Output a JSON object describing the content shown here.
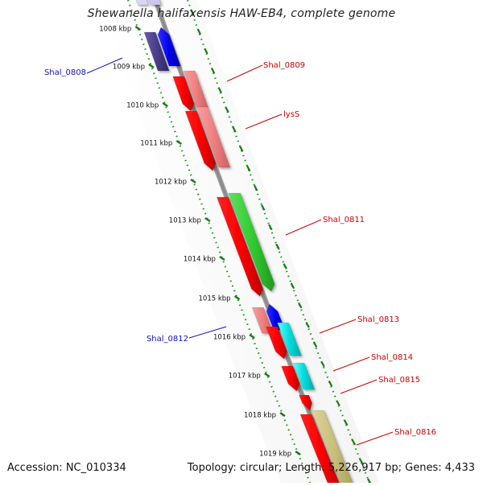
{
  "title": "Shewanella halifaxensis HAW-EB4, complete genome",
  "footer": {
    "accession": "Accession: NC_010334",
    "topology": "Topology: circular; Length: 5,226,917 bp; Genes: 4,433"
  },
  "colors": {
    "backbone": "#8c8c8c",
    "tick_dots": "#22a022",
    "tick_major": "#1a7a1a",
    "label_red": "#cc0000",
    "label_blue": "#1010c0",
    "scale_text": "#111111"
  },
  "scale_ticks": [
    "1008 kbp",
    "1009 kbp",
    "1010 kbp",
    "1011 kbp",
    "1012 kbp",
    "1013 kbp",
    "1014 kbp",
    "1015 kbp",
    "1016 kbp",
    "1017 kbp",
    "1018 kbp",
    "1019 kbp"
  ],
  "gene_labels": [
    {
      "text": "Shal_0808",
      "color": "blue"
    },
    {
      "text": "Shal_0809",
      "color": "red"
    },
    {
      "text": "lysS",
      "color": "red"
    },
    {
      "text": "Shal_0811",
      "color": "red"
    },
    {
      "text": "Shal_0812",
      "color": "blue"
    },
    {
      "text": "Shal_0813",
      "color": "red"
    },
    {
      "text": "Shal_0814",
      "color": "red"
    },
    {
      "text": "Shal_0815",
      "color": "red"
    },
    {
      "text": "Shal_0816",
      "color": "red"
    }
  ]
}
